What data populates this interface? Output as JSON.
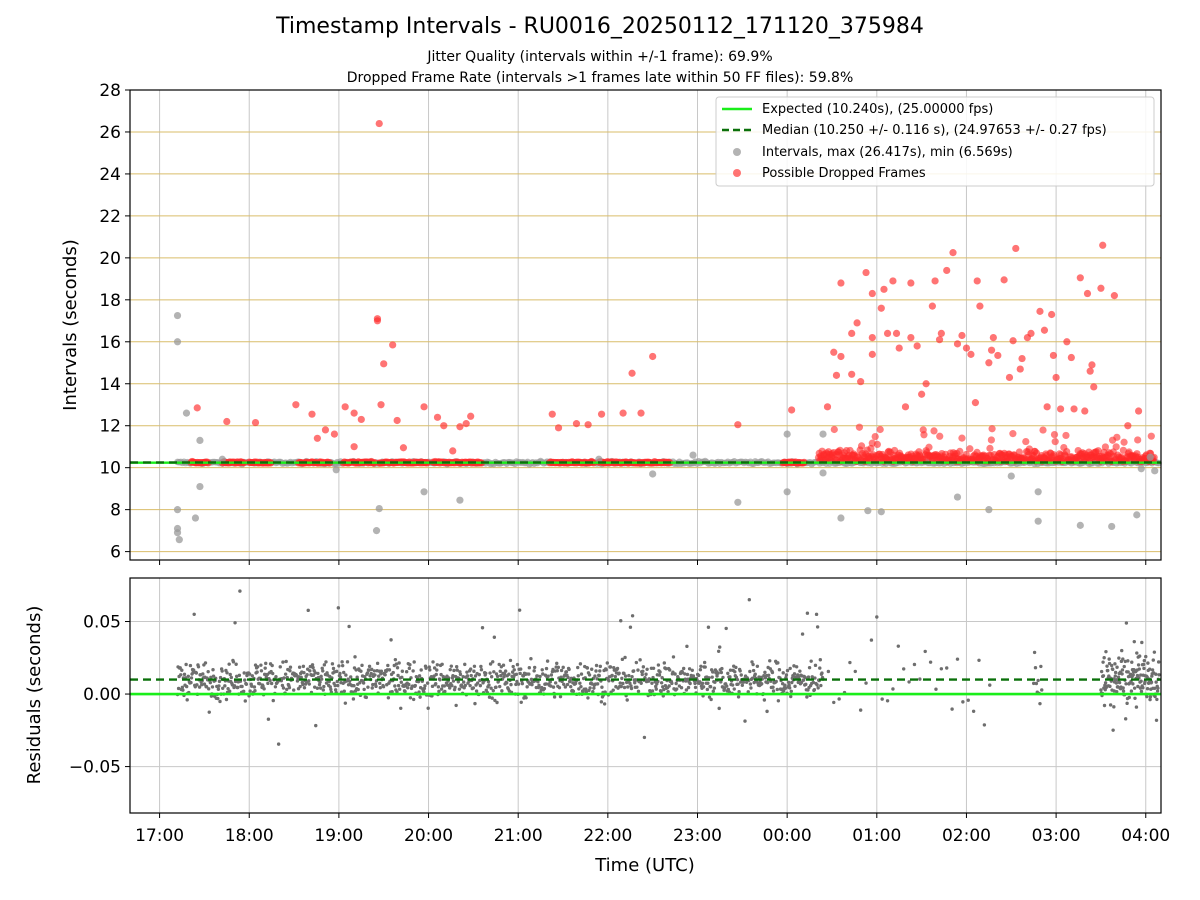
{
  "title": "Timestamp Intervals - RU0016_20250112_171120_375984",
  "subtitle_1": "Jitter Quality (intervals within +/-1 frame): 69.9%",
  "subtitle_2": "Dropped Frame Rate (intervals >1 frames late within 50 FF files): 59.8%",
  "colors": {
    "expected": "#1aee1a",
    "median": "#0a700a",
    "intervals": "#9a9a9a",
    "dropped": "#ff2a2a",
    "residuals": "#6e6e6e",
    "grid": "#c8c8c8",
    "hgrid": "#d9bd6a"
  },
  "chart_data": [
    {
      "type": "scatter",
      "ylabel": "Intervals (seconds)",
      "ylim": [
        5.6,
        28
      ],
      "yticks": [
        6,
        8,
        10,
        12,
        14,
        16,
        18,
        20,
        22,
        24,
        26,
        28
      ],
      "xlim_hours": [
        16.67,
        28.17
      ],
      "grid": true,
      "legend_position": "upper right",
      "legend": [
        "Expected (10.240s), (25.00000 fps)",
        "Median (10.250 +/- 0.116 s), (24.97653 +/- 0.27 fps)",
        "Intervals, max (26.417s), min (6.569s)",
        "Possible Dropped Frames"
      ],
      "expected_value": 10.24,
      "median_value": 10.25,
      "intervals_sample": [
        {
          "x": 17.2,
          "y": 17.25
        },
        {
          "x": 17.2,
          "y": 16.0
        },
        {
          "x": 17.3,
          "y": 12.6
        },
        {
          "x": 17.2,
          "y": 8.0
        },
        {
          "x": 17.2,
          "y": 7.1
        },
        {
          "x": 17.2,
          "y": 6.9
        },
        {
          "x": 17.22,
          "y": 6.57
        },
        {
          "x": 17.45,
          "y": 11.3
        },
        {
          "x": 17.45,
          "y": 9.1
        },
        {
          "x": 17.4,
          "y": 7.6
        },
        {
          "x": 19.45,
          "y": 8.05
        },
        {
          "x": 19.42,
          "y": 7.0
        },
        {
          "x": 18.97,
          "y": 9.9
        },
        {
          "x": 19.95,
          "y": 8.85
        },
        {
          "x": 20.35,
          "y": 8.45
        },
        {
          "x": 22.5,
          "y": 9.7
        },
        {
          "x": 23.45,
          "y": 8.35
        },
        {
          "x": 24.0,
          "y": 8.85
        },
        {
          "x": 24.0,
          "y": 11.6
        },
        {
          "x": 24.4,
          "y": 11.6
        },
        {
          "x": 24.4,
          "y": 9.75
        },
        {
          "x": 24.6,
          "y": 7.6
        },
        {
          "x": 24.9,
          "y": 7.95
        },
        {
          "x": 25.05,
          "y": 7.9
        },
        {
          "x": 25.9,
          "y": 8.6
        },
        {
          "x": 26.25,
          "y": 8.0
        },
        {
          "x": 26.5,
          "y": 9.6
        },
        {
          "x": 26.8,
          "y": 8.85
        },
        {
          "x": 26.8,
          "y": 7.45
        },
        {
          "x": 27.27,
          "y": 7.25
        },
        {
          "x": 27.62,
          "y": 7.2
        },
        {
          "x": 27.9,
          "y": 7.75
        },
        {
          "x": 27.95,
          "y": 9.95
        },
        {
          "x": 28.1,
          "y": 9.85
        },
        {
          "x": 28.05,
          "y": 10.5
        },
        {
          "x": 22.95,
          "y": 10.6
        },
        {
          "x": 21.9,
          "y": 10.4
        },
        {
          "x": 17.7,
          "y": 10.4
        }
      ],
      "dropped_sample": [
        {
          "x": 17.42,
          "y": 12.85
        },
        {
          "x": 17.75,
          "y": 12.2
        },
        {
          "x": 18.07,
          "y": 12.15
        },
        {
          "x": 18.52,
          "y": 13.0
        },
        {
          "x": 18.7,
          "y": 12.55
        },
        {
          "x": 18.76,
          "y": 11.4
        },
        {
          "x": 18.85,
          "y": 11.8
        },
        {
          "x": 18.95,
          "y": 11.6
        },
        {
          "x": 19.07,
          "y": 12.9
        },
        {
          "x": 19.17,
          "y": 12.6
        },
        {
          "x": 19.25,
          "y": 12.3
        },
        {
          "x": 19.17,
          "y": 11.0
        },
        {
          "x": 19.45,
          "y": 26.4
        },
        {
          "x": 19.43,
          "y": 17.1
        },
        {
          "x": 19.43,
          "y": 17.0
        },
        {
          "x": 19.6,
          "y": 15.85
        },
        {
          "x": 19.5,
          "y": 14.95
        },
        {
          "x": 19.47,
          "y": 13.0
        },
        {
          "x": 19.65,
          "y": 12.25
        },
        {
          "x": 19.72,
          "y": 10.95
        },
        {
          "x": 19.95,
          "y": 12.9
        },
        {
          "x": 20.1,
          "y": 12.4
        },
        {
          "x": 20.17,
          "y": 12.0
        },
        {
          "x": 20.27,
          "y": 10.8
        },
        {
          "x": 20.35,
          "y": 11.95
        },
        {
          "x": 20.42,
          "y": 12.1
        },
        {
          "x": 20.47,
          "y": 12.45
        },
        {
          "x": 21.38,
          "y": 12.55
        },
        {
          "x": 21.45,
          "y": 11.9
        },
        {
          "x": 21.65,
          "y": 12.1
        },
        {
          "x": 21.78,
          "y": 12.05
        },
        {
          "x": 21.93,
          "y": 12.55
        },
        {
          "x": 22.17,
          "y": 12.6
        },
        {
          "x": 22.27,
          "y": 14.5
        },
        {
          "x": 22.37,
          "y": 12.6
        },
        {
          "x": 22.5,
          "y": 15.3
        },
        {
          "x": 23.45,
          "y": 12.05
        },
        {
          "x": 24.05,
          "y": 12.75
        },
        {
          "x": 24.45,
          "y": 12.9
        },
        {
          "x": 24.52,
          "y": 15.5
        },
        {
          "x": 24.55,
          "y": 14.4
        },
        {
          "x": 24.6,
          "y": 15.3
        },
        {
          "x": 24.6,
          "y": 18.8
        },
        {
          "x": 24.72,
          "y": 14.45
        },
        {
          "x": 24.72,
          "y": 16.4
        },
        {
          "x": 24.78,
          "y": 16.9
        },
        {
          "x": 24.82,
          "y": 14.1
        },
        {
          "x": 24.88,
          "y": 19.3
        },
        {
          "x": 24.95,
          "y": 15.4
        },
        {
          "x": 24.95,
          "y": 16.2
        },
        {
          "x": 24.95,
          "y": 18.3
        },
        {
          "x": 25.05,
          "y": 17.6
        },
        {
          "x": 25.08,
          "y": 18.5
        },
        {
          "x": 25.12,
          "y": 16.4
        },
        {
          "x": 25.18,
          "y": 18.9
        },
        {
          "x": 25.22,
          "y": 16.4
        },
        {
          "x": 25.25,
          "y": 15.7
        },
        {
          "x": 25.32,
          "y": 12.9
        },
        {
          "x": 25.38,
          "y": 16.2
        },
        {
          "x": 25.38,
          "y": 18.8
        },
        {
          "x": 25.45,
          "y": 15.8
        },
        {
          "x": 25.5,
          "y": 13.5
        },
        {
          "x": 25.55,
          "y": 14.0
        },
        {
          "x": 25.62,
          "y": 17.7
        },
        {
          "x": 25.65,
          "y": 18.9
        },
        {
          "x": 25.7,
          "y": 16.1
        },
        {
          "x": 25.72,
          "y": 16.4
        },
        {
          "x": 25.78,
          "y": 19.4
        },
        {
          "x": 25.85,
          "y": 20.25
        },
        {
          "x": 25.9,
          "y": 15.9
        },
        {
          "x": 25.95,
          "y": 16.3
        },
        {
          "x": 26.0,
          "y": 15.7
        },
        {
          "x": 26.05,
          "y": 15.4
        },
        {
          "x": 26.1,
          "y": 13.1
        },
        {
          "x": 26.12,
          "y": 18.9
        },
        {
          "x": 26.15,
          "y": 17.7
        },
        {
          "x": 26.25,
          "y": 15.0
        },
        {
          "x": 26.28,
          "y": 15.6
        },
        {
          "x": 26.3,
          "y": 16.2
        },
        {
          "x": 26.35,
          "y": 15.35
        },
        {
          "x": 26.42,
          "y": 18.95
        },
        {
          "x": 26.48,
          "y": 14.3
        },
        {
          "x": 26.52,
          "y": 16.05
        },
        {
          "x": 26.55,
          "y": 20.45
        },
        {
          "x": 26.6,
          "y": 14.7
        },
        {
          "x": 26.62,
          "y": 15.2
        },
        {
          "x": 26.68,
          "y": 16.2
        },
        {
          "x": 26.72,
          "y": 16.4
        },
        {
          "x": 26.82,
          "y": 17.45
        },
        {
          "x": 26.87,
          "y": 16.55
        },
        {
          "x": 26.9,
          "y": 12.9
        },
        {
          "x": 26.95,
          "y": 17.3
        },
        {
          "x": 26.97,
          "y": 15.35
        },
        {
          "x": 27.0,
          "y": 14.3
        },
        {
          "x": 27.05,
          "y": 12.8
        },
        {
          "x": 27.12,
          "y": 16.0
        },
        {
          "x": 27.17,
          "y": 15.25
        },
        {
          "x": 27.2,
          "y": 12.8
        },
        {
          "x": 27.27,
          "y": 19.05
        },
        {
          "x": 27.32,
          "y": 12.7
        },
        {
          "x": 27.35,
          "y": 18.3
        },
        {
          "x": 27.38,
          "y": 14.6
        },
        {
          "x": 27.4,
          "y": 14.9
        },
        {
          "x": 27.42,
          "y": 13.85
        },
        {
          "x": 27.5,
          "y": 18.55
        },
        {
          "x": 27.52,
          "y": 20.6
        },
        {
          "x": 27.65,
          "y": 18.2
        },
        {
          "x": 27.8,
          "y": 12.0
        },
        {
          "x": 27.92,
          "y": 12.7
        }
      ],
      "interval_points": "reconstructed",
      "dropped_points": "reconstructed"
    },
    {
      "type": "scatter",
      "ylabel": "Residuals (seconds)",
      "xlabel": "Time (UTC)",
      "ylim": [
        -0.082,
        0.08
      ],
      "yticks": [
        0.05,
        0.0,
        -0.05
      ],
      "ytick_labels": [
        "0.05",
        "0.00",
        "−0.05"
      ],
      "xlim_hours": [
        16.67,
        28.17
      ],
      "xticks": [
        "17:00",
        "18:00",
        "19:00",
        "20:00",
        "21:00",
        "22:00",
        "23:00",
        "00:00",
        "01:00",
        "02:00",
        "03:00",
        "04:00"
      ],
      "expected_residual": 0.0,
      "median_residual": 0.01,
      "grid": true
    }
  ]
}
